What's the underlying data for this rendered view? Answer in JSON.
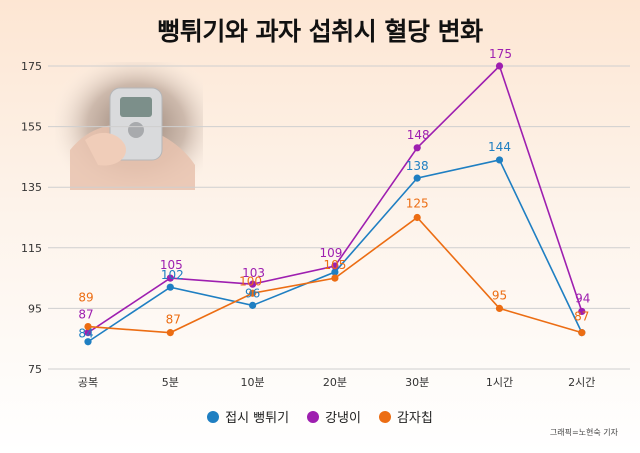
{
  "title": "뻥튀기와 과자 섭취시 혈당 변화",
  "credit": "그래픽=노현숙 기자",
  "photo": {
    "icon": "glucose-meter-photo"
  },
  "colors": {
    "series_0": "#1f7fc2",
    "series_1": "#9e1fb0",
    "series_2": "#ec6d13",
    "grid": "#cfcfcf"
  },
  "chart_data": {
    "type": "line",
    "title": "뻥튀기와 과자 섭취시 혈당 변화",
    "xlabel": "",
    "ylabel": "",
    "categories": [
      "공복",
      "5분",
      "10분",
      "20분",
      "30분",
      "1시간",
      "2시간"
    ],
    "yticks": [
      75,
      95,
      115,
      135,
      155,
      175
    ],
    "ylim": [
      75,
      175
    ],
    "grid": true,
    "legend_position": "bottom",
    "series": [
      {
        "name": "접시 뻥튀기",
        "values": [
          84,
          102,
          96,
          107,
          138,
          144,
          87
        ],
        "labels": [
          "84",
          "102",
          "96",
          "",
          "138",
          "144",
          ""
        ]
      },
      {
        "name": "강냉이",
        "values": [
          87,
          105,
          103,
          109,
          148,
          175,
          94
        ],
        "labels": [
          "87",
          "105",
          "103",
          "109",
          "148",
          "175",
          "94"
        ]
      },
      {
        "name": "감자칩",
        "values": [
          89,
          87,
          100,
          105,
          125,
          95,
          87
        ],
        "labels": [
          "89",
          "87",
          "100",
          "105",
          "125",
          "95",
          "87"
        ]
      }
    ]
  }
}
